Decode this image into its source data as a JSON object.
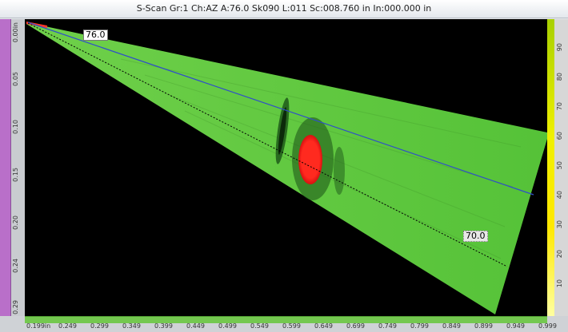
{
  "header": {
    "title": "S-Scan Gr:1 Ch:AZ A:76.0 Sk090 L:011 Sc:008.760 in In:000.000 in"
  },
  "scan": {
    "cursor_labels": [
      "76.0",
      "70.0"
    ],
    "colors": {
      "background": "#000000",
      "fan": "#58c43a",
      "indication": "#ff2a1f",
      "cursor_solid": "#3050c8",
      "cursor_dotted": "#000000"
    }
  },
  "left_axis": {
    "labels": [
      "0.00in",
      "0.05",
      "0.10",
      "0.15",
      "0.20",
      "0.24",
      "0.29"
    ]
  },
  "right_axis": {
    "labels": [
      "90",
      "80",
      "70",
      "60",
      "50",
      "40",
      "30",
      "20",
      "10"
    ]
  },
  "bottom_axis": {
    "labels": [
      "0.199in",
      "0.249",
      "0.299",
      "0.349",
      "0.399",
      "0.449",
      "0.499",
      "0.549",
      "0.599",
      "0.649",
      "0.699",
      "0.749",
      "0.799",
      "0.849",
      "0.899",
      "0.949",
      "0.999"
    ]
  }
}
